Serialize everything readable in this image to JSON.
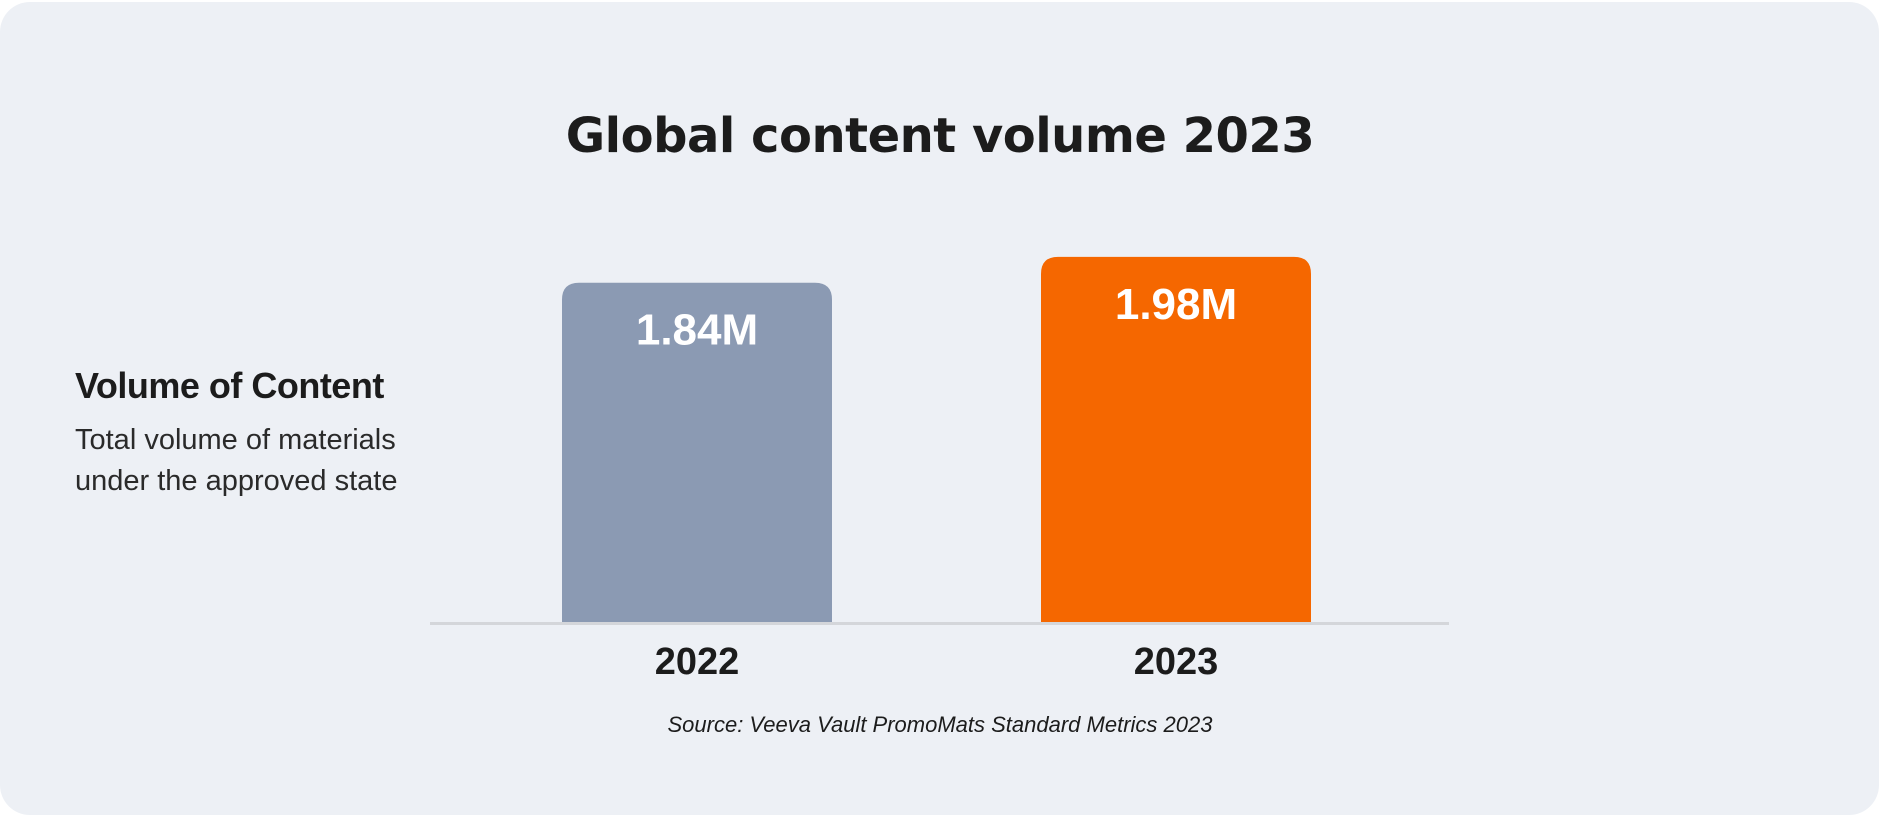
{
  "chart_data": {
    "type": "bar",
    "title": "Global content volume 2023",
    "categories": [
      "2022",
      "2023"
    ],
    "values": [
      1.84,
      1.98
    ],
    "value_labels": [
      "1.84M",
      "1.98M"
    ],
    "bar_colors": [
      "#8b9ab3",
      "#f56700"
    ],
    "ylim": [
      0,
      2.05
    ],
    "grid": false,
    "xlabel": "",
    "ylabel": ""
  },
  "side_panel": {
    "heading": "Volume of Content",
    "description": "Total volume of materials under the approved state"
  },
  "source": "Source: Veeva Vault PromoMats Standard Metrics 2023",
  "colors": {
    "background": "#edf0f5",
    "baseline": "#d4d6da",
    "text": "#1c1c1c"
  }
}
